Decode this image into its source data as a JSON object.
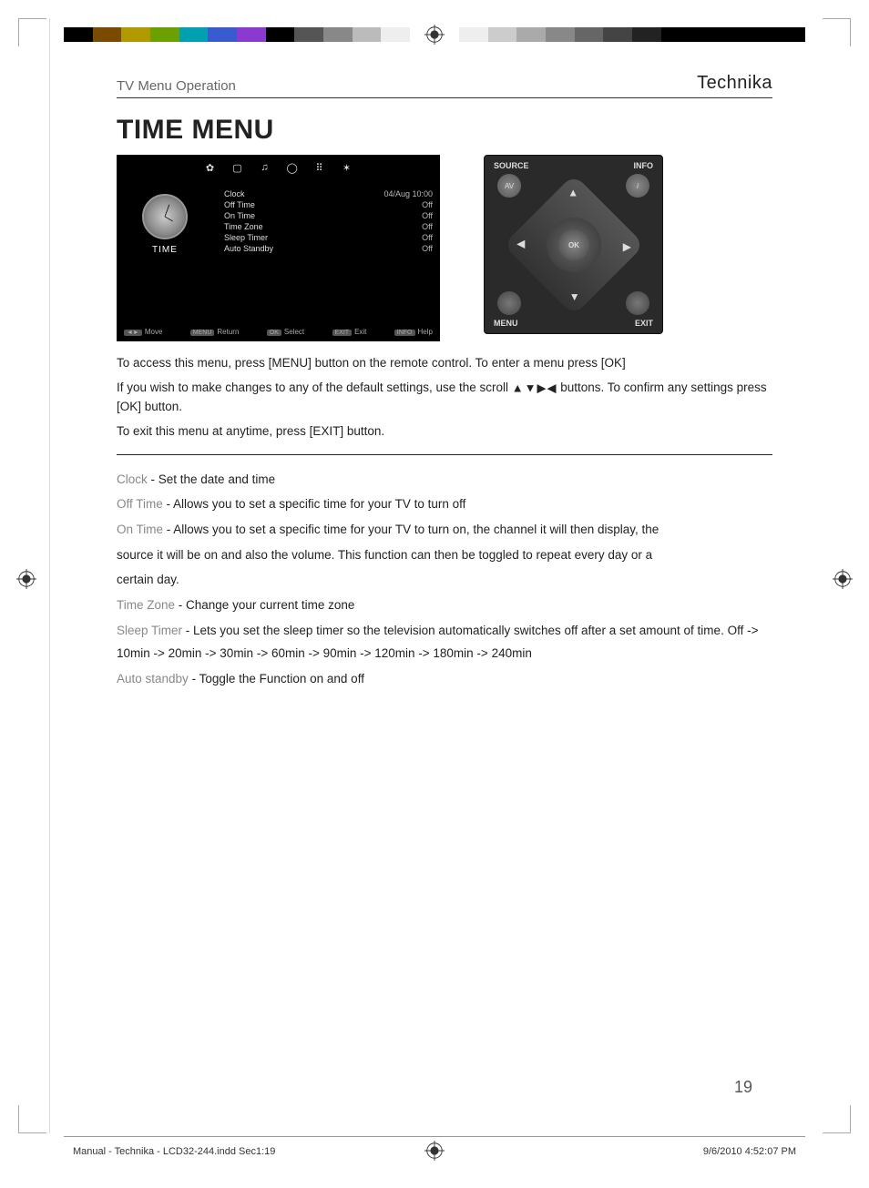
{
  "header": {
    "section": "TV Menu Operation",
    "brand": "Technika"
  },
  "title": "TIME MENU",
  "tv": {
    "tabs": [
      "✿",
      "▢",
      "♫",
      "◯",
      "⠿",
      "✶"
    ],
    "left_label": "TIME",
    "rows": [
      {
        "k": "Clock",
        "v": "04/Aug 10:00"
      },
      {
        "k": "Off Time",
        "v": "Off"
      },
      {
        "k": "On Time",
        "v": "Off"
      },
      {
        "k": "Time Zone",
        "v": "Off"
      },
      {
        "k": "Sleep Timer",
        "v": "Off"
      },
      {
        "k": "Auto Standby",
        "v": "Off"
      }
    ],
    "footer": [
      {
        "b": "◄►",
        "t": "Move"
      },
      {
        "b": "MENU",
        "t": "Return"
      },
      {
        "b": "OK",
        "t": "Select"
      },
      {
        "b": "EXIT",
        "t": "Exit"
      },
      {
        "b": "INFO",
        "t": "Help"
      }
    ]
  },
  "remote": {
    "labels": {
      "tl": "SOURCE",
      "tr": "INFO",
      "bl": "MENU",
      "br": "EXIT"
    },
    "av": "AV",
    "ok": "OK",
    "info": "i"
  },
  "instructions": {
    "p1": "To access this menu, press [MENU] button on the remote control. To enter a menu press [OK]",
    "p2a": "If you wish to make changes to any of the default settings, use the scroll ",
    "arrows": "▲▼▶◀",
    "p2b": " buttons. To confirm any settings press [OK] button.",
    "p3": "To exit this menu at anytime, press [EXIT] button."
  },
  "defs": [
    {
      "term": "Clock",
      "text": " - Set the date and time"
    },
    {
      "term": "Off Time",
      "text": " - Allows you to set a specific time for your TV to turn off"
    },
    {
      "term": "On Time",
      "text": " - Allows you to set a specific time for your TV to turn on, the channel it will then display, the"
    },
    {
      "term": "",
      "text": "source it will be on and also the volume. This function can then be toggled to repeat every day or a"
    },
    {
      "term": "",
      "text": "certain day."
    },
    {
      "term": "Time Zone",
      "text": " - Change your current time zone"
    },
    {
      "term": "Sleep Timer",
      "text": " - Lets you set the sleep timer so the television automatically switches off after a set amount of time. Off -> 10min -> 20min -> 30min -> 60min -> 90min -> 120min -> 180min -> 240min"
    },
    {
      "term": "Auto standby",
      "text": " - Toggle the Function on and off"
    }
  ],
  "pagenum": "19",
  "footer": {
    "left": "Manual - Technika - LCD32-244.indd   Sec1:19",
    "right": "9/6/2010   4:52:07 PM"
  },
  "regbar_colors": {
    "left": [
      "#000",
      "#7a4a00",
      "#b09a00",
      "#6aa000",
      "#00a0b0",
      "#3a5ad0",
      "#8a3ad0",
      "#000",
      "#555",
      "#888",
      "#bbb",
      "#eee"
    ],
    "right": [
      "#eee",
      "#ccc",
      "#aaa",
      "#888",
      "#666",
      "#444",
      "#222",
      "#000",
      "#000",
      "#000",
      "#000",
      "#000"
    ]
  }
}
